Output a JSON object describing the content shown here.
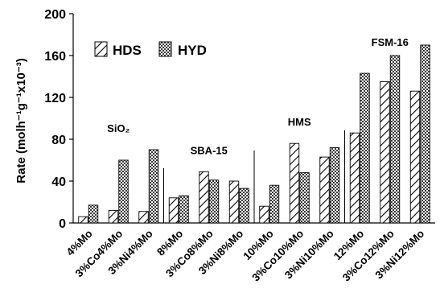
{
  "chart_data": {
    "type": "bar",
    "ylabel": "Rate (molh⁻¹g⁻¹x10⁻³)",
    "ylim": [
      0,
      200
    ],
    "yticks": [
      "0",
      "40",
      "80",
      "120",
      "160",
      "200"
    ],
    "categories": [
      "4%Mo",
      "3%Co4%Mo",
      "3%Ni4%Mo",
      "8%Mo",
      "3%Co8%Mo",
      "3%Ni8%Mo",
      "10%Mo",
      "3%Co10%Mo",
      "3%Ni10%Mo",
      "12%Mo",
      "3%Co12%Mo",
      "3%Ni12%Mo"
    ],
    "series": [
      {
        "name": "HDS",
        "pattern": "diagonal-hatch",
        "values": [
          6,
          12,
          11,
          24,
          49,
          40,
          16,
          76,
          63,
          86,
          135,
          126
        ]
      },
      {
        "name": "HYD",
        "pattern": "checkered",
        "values": [
          17,
          60,
          70,
          26,
          41,
          33,
          36,
          48,
          72,
          143,
          160,
          170
        ]
      }
    ],
    "group_labels": [
      "SiO₂",
      "SBA-15",
      "HMS",
      "FSM-16"
    ],
    "legend_position": "top-left",
    "grid": false
  }
}
